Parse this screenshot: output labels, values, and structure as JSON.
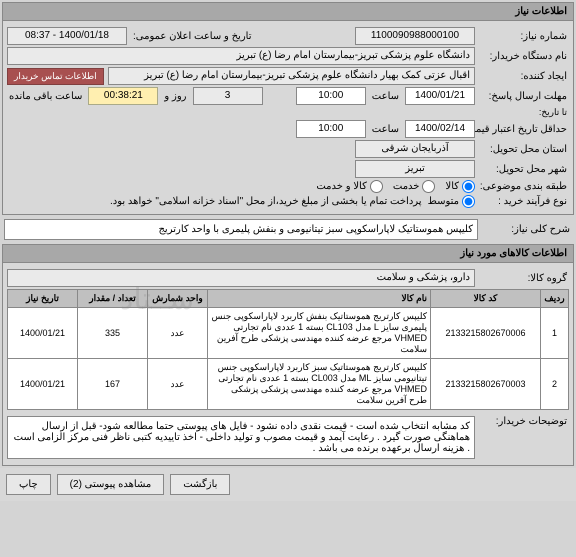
{
  "header1": "اطلاعات نیاز",
  "need_number_label": "شماره نیاز:",
  "need_number": "1100090988000100",
  "public_date_label": "تاریخ و ساعت اعلان عمومی:",
  "public_date": "1400/01/18 - 08:37",
  "buyer_org_label": "نام دستگاه خریدار:",
  "buyer_org": "دانشگاه علوم پزشکی تبریز-بیمارستان امام رضا (ع) تبریز",
  "creator_label": "ایجاد کننده:",
  "creator": "اقبال عزتی کمک بهیار دانشگاه علوم پزشکی تبریز-بیمارستان امام رضا (ع) تبریز",
  "contact_btn": "اطلاعات تماس خریدار",
  "deadline_label": "مهلت ارسال پاسخ:",
  "until_label": "تا تاریخ:",
  "deadline_date": "1400/01/21",
  "deadline_hour_label": "ساعت",
  "deadline_hour": "10:00",
  "days_count": "3",
  "days_label": "روز و",
  "timer_value": "00:38:21",
  "timer_label": "ساعت باقی مانده",
  "price_credit_label": "حداقل تاریخ اعتبار قیمت:",
  "price_date": "1400/02/14",
  "price_hour": "10:00",
  "delivery_province_label": "استان محل تحویل:",
  "delivery_province": "آذربایجان شرقی",
  "delivery_city_label": "شهر محل تحویل:",
  "delivery_city": "تبریز",
  "category_label": "طبقه بندی موضوعی:",
  "cat_goods": "کالا",
  "cat_service": "خدمت",
  "cat_goods_service": "کالا و خدمت",
  "purchase_method_label": "نوع فرآیند خرید :",
  "method_medium": "متوسط",
  "purchase_note": "پرداخت تمام یا بخشی از مبلغ خرید،از محل \"اسناد خزانه اسلامی\" خواهد بود.",
  "desc_label": "شرح کلی نیاز:",
  "desc": "کلیپس هموستاتیک لاپاراسکوپی سبز تیتانیومی و بنفش پلیمری با واحد کارتریج",
  "header2": "اطلاعات کالاهای مورد نیاز",
  "goods_group_label": "گروه کالا:",
  "goods_group": "دارو، پزشکی و سلامت",
  "th_idx": "ردیف",
  "th_code": "کد کالا",
  "th_name": "نام کالا",
  "th_count": "تعداد / مقدار",
  "th_unit": "واحد شمارش",
  "th_date": "تاریخ نیاز",
  "rows": [
    {
      "idx": "1",
      "code": "2133215802670006",
      "name": "کلیپس کارتریج هموستاتیک بنفش کاربرد لاپاراسکوپی جنس پلیمری سایز L مدل CL103 بسته 1 عددی نام تجارتی VHMED مرجع عرضه کننده مهندسی پزشکی طرح آفرین سلامت",
      "count": "335",
      "unit": "عدد",
      "date": "1400/01/21"
    },
    {
      "idx": "2",
      "code": "2133215802670003",
      "name": "کلیپس کارتریج هموستاتیک سبز کاربرد لاپاراسکوپی جنس تیتانیومی سایز ML مدل CL003 بسته 1 عددی نام تجارتی VHMED مرجع عرضه کننده مهندسی پزشکی پزشکی طرح آفرین سلامت",
      "count": "167",
      "unit": "عدد",
      "date": "1400/01/21"
    }
  ],
  "buyer_note_label": "توضیحات خریدار:",
  "buyer_note": "کد مشابه انتخاب شده است - قیمت نقدی داده نشود - فایل های پیوستی حتما مطالعه شود- قبل از ارسال هماهنگی صورت گیرد . رعایت آیمد و قیمت مصوب و تولید داخلی -  اخذ تاییدیه کتبی ناظر فنی مرکز الزامی است . هزینه ارسال برعهده برنده می باشد .",
  "btn_view": "مشاهده پیوستی (2)",
  "btn_close": "چاپ",
  "btn_back": "بازگشت"
}
